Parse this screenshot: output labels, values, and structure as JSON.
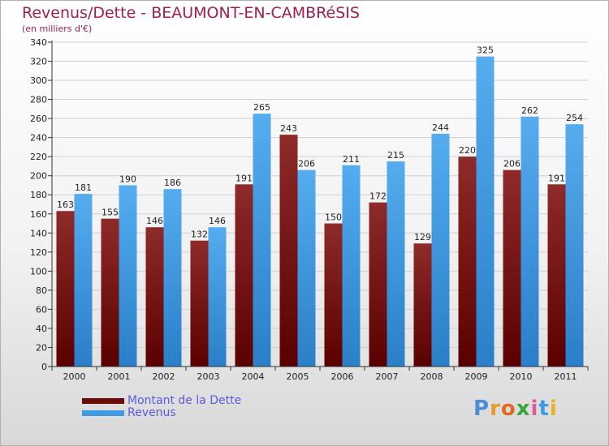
{
  "header": {
    "title": "Revenus/Dette - BEAUMONT-EN-CAMBRéSIS",
    "subtitle": "(en milliers d'€)"
  },
  "legend": {
    "items": [
      {
        "label": "Montant de la Dette",
        "color": "#7a0f0f"
      },
      {
        "label": "Revenus",
        "color": "#3d9be6"
      }
    ]
  },
  "logo": {
    "text": "Proxiti",
    "colors": [
      "#4a8fd6",
      "#e89a2c",
      "#e06a20",
      "#3aa63a",
      "#e05a9a",
      "#3d9be6",
      "#e8b020"
    ]
  },
  "chart_data": {
    "type": "bar",
    "categories": [
      "2000",
      "2001",
      "2002",
      "2003",
      "2004",
      "2005",
      "2006",
      "2007",
      "2008",
      "2009",
      "2010",
      "2011"
    ],
    "series": [
      {
        "name": "Montant de la Dette",
        "color": "#7a0f0f",
        "values": [
          163,
          155,
          146,
          132,
          191,
          243,
          150,
          172,
          129,
          220,
          206,
          191
        ]
      },
      {
        "name": "Revenus",
        "color": "#3d9be6",
        "values": [
          181,
          190,
          186,
          146,
          265,
          206,
          211,
          215,
          244,
          325,
          262,
          254
        ]
      }
    ],
    "ylim": [
      0,
      340
    ],
    "ytick_step": 20,
    "grid": true,
    "legend_position": "bottom-left"
  }
}
